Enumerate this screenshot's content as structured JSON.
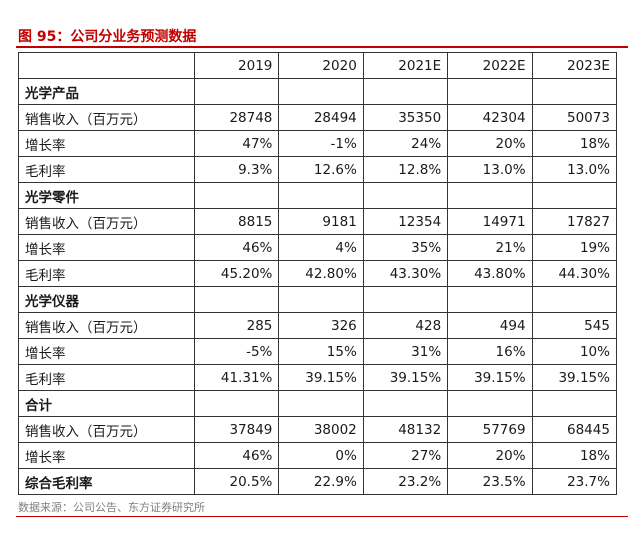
{
  "title": "图 95：公司分业务预测数据",
  "columns": [
    "",
    "2019",
    "2020",
    "2021E",
    "2022E",
    "2023E"
  ],
  "rows": [
    {
      "type": "section",
      "label": "光学产品",
      "values": [
        "",
        "",
        "",
        "",
        ""
      ]
    },
    {
      "type": "data",
      "label": "销售收入（百万元）",
      "values": [
        "28748",
        "28494",
        "35350",
        "42304",
        "50073"
      ]
    },
    {
      "type": "data",
      "label": "增长率",
      "values": [
        "47%",
        "-1%",
        "24%",
        "20%",
        "18%"
      ]
    },
    {
      "type": "data",
      "label": "毛利率",
      "values": [
        "9.3%",
        "12.6%",
        "12.8%",
        "13.0%",
        "13.0%"
      ]
    },
    {
      "type": "section",
      "label": "光学零件",
      "values": [
        "",
        "",
        "",
        "",
        ""
      ]
    },
    {
      "type": "data",
      "label": "销售收入（百万元）",
      "values": [
        "8815",
        "9181",
        "12354",
        "14971",
        "17827"
      ]
    },
    {
      "type": "data",
      "label": "增长率",
      "values": [
        "46%",
        "4%",
        "35%",
        "21%",
        "19%"
      ]
    },
    {
      "type": "data",
      "label": "毛利率",
      "values": [
        "45.20%",
        "42.80%",
        "43.30%",
        "43.80%",
        "44.30%"
      ]
    },
    {
      "type": "section",
      "label": "光学仪器",
      "values": [
        "",
        "",
        "",
        "",
        ""
      ]
    },
    {
      "type": "data",
      "label": "销售收入（百万元）",
      "values": [
        "285",
        "326",
        "428",
        "494",
        "545"
      ]
    },
    {
      "type": "data",
      "label": "增长率",
      "values": [
        "-5%",
        "15%",
        "31%",
        "16%",
        "10%"
      ]
    },
    {
      "type": "data",
      "label": "毛利率",
      "values": [
        "41.31%",
        "39.15%",
        "39.15%",
        "39.15%",
        "39.15%"
      ]
    },
    {
      "type": "section",
      "label": "合计",
      "values": [
        "",
        "",
        "",
        "",
        ""
      ]
    },
    {
      "type": "data",
      "label": "销售收入（百万元）",
      "values": [
        "37849",
        "38002",
        "48132",
        "57769",
        "68445"
      ]
    },
    {
      "type": "data",
      "label": "增长率",
      "values": [
        "46%",
        "0%",
        "27%",
        "20%",
        "18%"
      ]
    },
    {
      "type": "total",
      "label": "综合毛利率",
      "values": [
        "20.5%",
        "22.9%",
        "23.2%",
        "23.5%",
        "23.7%"
      ]
    }
  ],
  "source": "数据来源：公司公告、东方证券研究所",
  "colors": {
    "accent": "#c00000",
    "border": "#333333",
    "source_text": "#7f7f7f"
  }
}
